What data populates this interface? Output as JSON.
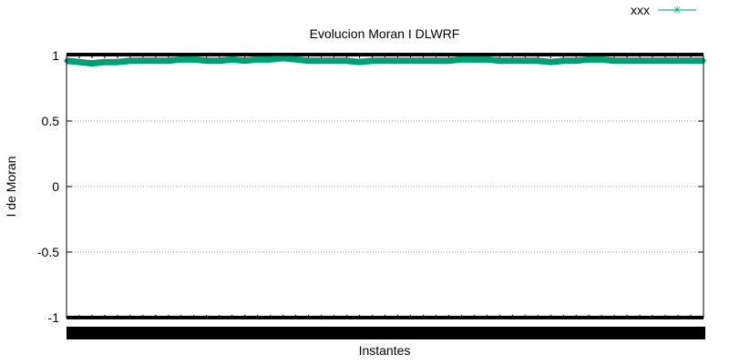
{
  "chart_data": {
    "type": "line",
    "title": "Evolucion Moran I DLWRF",
    "xlabel": "Instantes",
    "ylabel": "I de Moran",
    "ylim": [
      -1,
      1
    ],
    "yticks": [
      1,
      0.5,
      0,
      -0.5,
      -1
    ],
    "ytick_labels": [
      "1",
      "0.5",
      "0",
      "-0.5",
      "-1"
    ],
    "xlim": [
      0,
      1000
    ],
    "grid": true,
    "legend_position": "top-right",
    "series": [
      {
        "name": "xxx",
        "color": "#009e73",
        "marker": "asterisk",
        "x": [
          0,
          20,
          40,
          60,
          80,
          100,
          120,
          140,
          160,
          180,
          200,
          220,
          240,
          260,
          280,
          300,
          320,
          340,
          360,
          380,
          400,
          420,
          440,
          460,
          480,
          500,
          520,
          540,
          560,
          580,
          600,
          620,
          640,
          660,
          680,
          700,
          720,
          740,
          760,
          780,
          800,
          820,
          840,
          860,
          880,
          900,
          920,
          940,
          960,
          980,
          1000
        ],
        "values": [
          0.96,
          0.95,
          0.94,
          0.95,
          0.95,
          0.96,
          0.96,
          0.96,
          0.96,
          0.97,
          0.97,
          0.96,
          0.96,
          0.97,
          0.96,
          0.97,
          0.97,
          0.98,
          0.97,
          0.96,
          0.96,
          0.96,
          0.96,
          0.95,
          0.96,
          0.96,
          0.96,
          0.96,
          0.96,
          0.96,
          0.96,
          0.97,
          0.97,
          0.97,
          0.96,
          0.96,
          0.96,
          0.96,
          0.95,
          0.96,
          0.96,
          0.97,
          0.97,
          0.96,
          0.96,
          0.96,
          0.96,
          0.96,
          0.96,
          0.96,
          0.96
        ]
      }
    ]
  }
}
